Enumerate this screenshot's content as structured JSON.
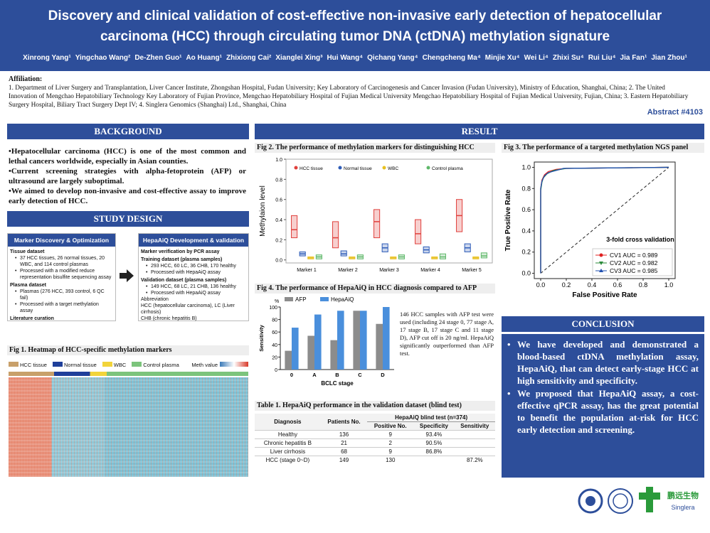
{
  "header": {
    "title": "Discovery and clinical validation of cost-effective non-invasive early detection of hepatocellular carcinoma (HCC) through circulating tumor DNA (ctDNA) methylation signature",
    "authors": [
      "Xinrong Yang¹",
      "Yingchao Wang²",
      "De-Zhen Guo¹",
      "Ao Huang¹",
      "Zhixiong Cai²",
      "Xianglei Xing³",
      "Hui Wang⁴",
      "Qichang Yang⁴",
      "Chengcheng Ma⁴",
      "Minjie Xu⁴",
      "Wei Li⁴",
      "Zhixi Su⁴",
      "Rui Liu⁴",
      "Jia Fan¹",
      "Jian Zhou¹"
    ],
    "affiliation_label": "Affiliation:",
    "affiliation": "1. Department of Liver Surgery and Transplantation, Liver Cancer Institute, Zhongshan Hospital, Fudan University; Key Laboratory of Carcinogenesis and Cancer Invasion (Fudan University), Ministry of Education, Shanghai, China; 2. The United Innovation of Mengchao Hepatobiliary Technology Key Laboratory of Fujian Province, Mengchao Hepatobiliary Hospital of Fujian Medical University Mengchao Hepatobiliary Hospital of Fujian Medical University, Fujian, China; 3. Eastern Hepatobiliary Surgery Hospital, Biliary Tract Surgery Dept IV; 4. Singlera Genomics (Shanghai) Ltd., Shanghai, China",
    "abstract": "Abstract #4103"
  },
  "background": {
    "heading": "BACKGROUND",
    "bullets": [
      "Hepatocellular carcinoma (HCC) is one of the most common and lethal cancers worldwide, especially in Asian counties.",
      "Current screening strategies with alpha-fetoprotein (AFP) or ultrasound are largely suboptimal.",
      "We aimed to develop non-invasive and cost-effective assay to improve early detection of HCC."
    ]
  },
  "study_design": {
    "heading": "STUDY DESIGN",
    "left": {
      "title": "Marker Discovery & Optimization",
      "lines": [
        {
          "text": "Tissue dataset",
          "style": "head"
        },
        {
          "text": "37 HCC tissues, 26 normal tissues, 20 WBC, and 114 control plasmas",
          "style": "bullet"
        },
        {
          "text": "Processed with a modified reduce representation bisulfite sequencing assay",
          "style": "bullet"
        },
        {
          "text": "Plasma dataset",
          "style": "head"
        },
        {
          "text": "Plasmas (276 HCC, 393 control, 6 QC fail)",
          "style": "bullet"
        },
        {
          "text": "Processed with a target methylation assay",
          "style": "bullet"
        },
        {
          "text": "Literature curation",
          "style": "head"
        }
      ]
    },
    "right": {
      "title": "HepaAiQ Development & validation",
      "lines": [
        {
          "text": "Marker verification by PCR assay",
          "style": "head"
        },
        {
          "text": "Training dataset (plasma samples)",
          "style": "head"
        },
        {
          "text": "293 HCC, 60 LC, 36 CHB, 170 healthy",
          "style": "bullet"
        },
        {
          "text": "Processed with HepaAiQ assay",
          "style": "bullet"
        },
        {
          "text": "Validation dataset (plasma samples)",
          "style": "head"
        },
        {
          "text": "149 HCC, 68 LC, 21 CHB, 136 healthy",
          "style": "bullet"
        },
        {
          "text": "Processed with HepaAiQ assay",
          "style": "bullet"
        },
        {
          "text": "Abbreviation",
          "style": "plain"
        },
        {
          "text": "HCC (hepatocellular carcinoma), LC (Liver cirrhosis)",
          "style": "plain"
        },
        {
          "text": "CHB (chronic hepatitis B)",
          "style": "plain"
        }
      ]
    }
  },
  "fig1": {
    "title": "Fig 1. Heatmap of HCC-specific methylation markers",
    "groups": [
      {
        "name": "HCC tissue",
        "color": "#c8a06a"
      },
      {
        "name": "Normal tissue",
        "color": "#1f3f9a"
      },
      {
        "name": "WBC",
        "color": "#f2d43a"
      },
      {
        "name": "Control plasma",
        "color": "#7cc47c"
      }
    ],
    "scale_label": "Meth value"
  },
  "result": {
    "heading": "RESULT"
  },
  "fig2": {
    "title": "Fig 2. The performance of methylation markers for distinguishing HCC",
    "chart_data": {
      "type": "box",
      "y_label": "Methylaion level",
      "categories": [
        "Marker 1",
        "Marker 2",
        "Marker 3",
        "Marker 4",
        "Marker 5"
      ],
      "ylim": [
        -0.03,
        1.0
      ],
      "yticks": [
        {
          "value": 0,
          "label": "0.0"
        },
        {
          "value": 0.2,
          "label": "0.2"
        },
        {
          "value": 0.4,
          "label": "0.4"
        },
        {
          "value": 0.6,
          "label": "0.6"
        },
        {
          "value": 0.8,
          "label": "0.8"
        },
        {
          "value": 1.0,
          "label": "1.0"
        }
      ],
      "series": [
        {
          "name": "HCC tissue",
          "color": "#e0403c",
          "values": [
            {
              "q1": 0.22,
              "median": 0.3,
              "q3": 0.44
            },
            {
              "q1": 0.12,
              "median": 0.22,
              "q3": 0.38
            },
            {
              "q1": 0.22,
              "median": 0.38,
              "q3": 0.5
            },
            {
              "q1": 0.16,
              "median": 0.26,
              "q3": 0.4
            },
            {
              "q1": 0.28,
              "median": 0.44,
              "q3": 0.6
            }
          ]
        },
        {
          "name": "Normal tissue",
          "color": "#2e5cb8",
          "values": [
            {
              "q1": 0.04,
              "median": 0.06,
              "q3": 0.08
            },
            {
              "q1": 0.04,
              "median": 0.06,
              "q3": 0.09
            },
            {
              "q1": 0.08,
              "median": 0.12,
              "q3": 0.16
            },
            {
              "q1": 0.07,
              "median": 0.1,
              "q3": 0.13
            },
            {
              "q1": 0.08,
              "median": 0.12,
              "q3": 0.16
            }
          ]
        },
        {
          "name": "WBC",
          "color": "#e8c020",
          "values": [
            {
              "q1": 0.01,
              "median": 0.02,
              "q3": 0.03
            },
            {
              "q1": 0.01,
              "median": 0.02,
              "q3": 0.03
            },
            {
              "q1": 0.01,
              "median": 0.02,
              "q3": 0.03
            },
            {
              "q1": 0.01,
              "median": 0.02,
              "q3": 0.03
            },
            {
              "q1": 0.01,
              "median": 0.02,
              "q3": 0.03
            }
          ]
        },
        {
          "name": "Control plasma",
          "color": "#5fb86a",
          "values": [
            {
              "q1": 0.01,
              "median": 0.03,
              "q3": 0.05
            },
            {
              "q1": 0.01,
              "median": 0.03,
              "q3": 0.05
            },
            {
              "q1": 0.01,
              "median": 0.03,
              "q3": 0.05
            },
            {
              "q1": 0.01,
              "median": 0.03,
              "q3": 0.06
            },
            {
              "q1": 0.02,
              "median": 0.04,
              "q3": 0.07
            }
          ]
        }
      ]
    }
  },
  "fig3": {
    "title": "Fig 3. The performance of a targeted methylation NGS panel",
    "chart_data": {
      "type": "line",
      "x_label": "False Positive Rate",
      "y_label": "True Positive Rate",
      "annotation": "3-fold cross validation",
      "xlim": [
        -0.05,
        1.05
      ],
      "ylim": [
        -0.05,
        1.05
      ],
      "xticks": [
        {
          "value": 0,
          "label": "0.0"
        },
        {
          "value": 0.2,
          "label": "0.2"
        },
        {
          "value": 0.4,
          "label": "0.4"
        },
        {
          "value": 0.6,
          "label": "0.6"
        },
        {
          "value": 0.8,
          "label": "0.8"
        },
        {
          "value": 1.0,
          "label": "1.0"
        }
      ],
      "yticks": [
        {
          "value": 0,
          "label": "0.0"
        },
        {
          "value": 0.2,
          "label": "0.2"
        },
        {
          "value": 0.4,
          "label": "0.4"
        },
        {
          "value": 0.6,
          "label": "0.6"
        },
        {
          "value": 0.8,
          "label": "0.8"
        },
        {
          "value": 1.0,
          "label": "1.0"
        }
      ],
      "series": [
        {
          "name": "CV1 AUC = 0.989",
          "color": "#e02020",
          "marker": "circle",
          "x": [
            0,
            0,
            0.01,
            0.03,
            0.06,
            0.12,
            0.2,
            1.0
          ],
          "values": [
            0,
            0.8,
            0.88,
            0.93,
            0.96,
            0.98,
            0.99,
            1.0
          ]
        },
        {
          "name": "CV2 AUC = 0.982",
          "color": "#2a8a3a",
          "marker": "triangle-down",
          "x": [
            0,
            0,
            0.01,
            0.02,
            0.05,
            0.1,
            0.2,
            1.0
          ],
          "values": [
            0,
            0.78,
            0.86,
            0.9,
            0.94,
            0.97,
            0.99,
            1.0
          ]
        },
        {
          "name": "CV3 AUC = 0.985",
          "color": "#2050b0",
          "marker": "triangle-up",
          "x": [
            0,
            0,
            0.01,
            0.03,
            0.06,
            0.12,
            0.18,
            1.0
          ],
          "values": [
            0,
            0.8,
            0.87,
            0.92,
            0.95,
            0.97,
            0.99,
            1.0
          ]
        }
      ]
    }
  },
  "fig4": {
    "title": "Fig 4. The performance of HepaAiQ in HCC diagnosis compared to AFP",
    "chart_data": {
      "type": "bar",
      "y_label": "Sensitivity",
      "y_unit": "%",
      "x_label": "BCLC stage",
      "categories": [
        "0",
        "A",
        "B",
        "C",
        "D"
      ],
      "ylim": [
        0,
        100
      ],
      "yticks": [
        0,
        20,
        40,
        60,
        80,
        100
      ],
      "series": [
        {
          "name": "AFP",
          "color": "#8c8c8c",
          "values": [
            30,
            54,
            47,
            94,
            73
          ]
        },
        {
          "name": "HepaAiQ",
          "color": "#4a8fdc",
          "values": [
            67,
            88,
            94,
            94,
            100
          ]
        }
      ]
    },
    "note": "146 HCC samples with AFP test were used (including 24 stage 0, 77 stage A, 17 stage B, 17 stage C and 11 stage D), AFP cut off is 20 ng/ml. HepaAiQ significantly outperformed than AFP test."
  },
  "table": {
    "title": "Table 1. HepaAiQ performance in the validation dataset (blind test)",
    "group_header": "HepaAiQ blind test (n=374)",
    "columns": [
      "Diagnosis",
      "Patients No.",
      "Positive No.",
      "Specificity",
      "Sensitivity"
    ],
    "rows": [
      [
        "Healthy",
        136,
        9,
        "93.4%",
        null
      ],
      [
        "Chronic hepatitis B",
        21,
        2,
        "90.5%",
        null
      ],
      [
        "Liver cirrhosis",
        68,
        9,
        "86.8%",
        null
      ],
      [
        "HCC (stage 0~D)",
        149,
        130,
        null,
        "87.2%"
      ]
    ]
  },
  "conclusion": {
    "heading": "CONCLUSION",
    "bullets": [
      "We have developed and demonstrated a blood-based ctDNA methylation assay, HepaAiQ, that can detect early-stage HCC at high sensitivity and specificity.",
      "We proposed that HepaAiQ assay, a cost-effective qPCR assay, has the great potential to benefit the population at-risk for HCC early detection and screening."
    ]
  },
  "logos": {
    "text": [
      "鹏远生物",
      "Singlera"
    ]
  }
}
